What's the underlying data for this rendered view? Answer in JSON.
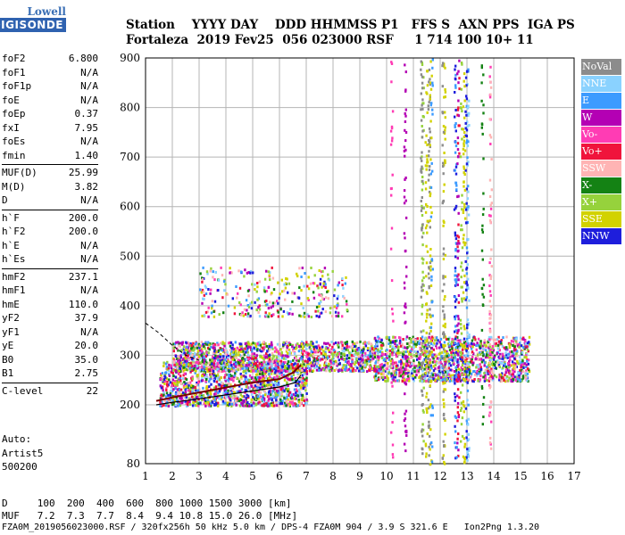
{
  "logo": {
    "line1": "Lowell",
    "line2": "DIGISONDE"
  },
  "header": {
    "line1": "Station    YYYY DAY    DDD HHMMSS P1   FFS S  AXN PPS  IGA PS",
    "line2": "Fortaleza  2019 Fev25  056 023000 RSF     1 714 100 10+ 11"
  },
  "params": [
    {
      "k": "foF2",
      "v": "6.800"
    },
    {
      "k": "foF1",
      "v": "N/A"
    },
    {
      "k": "foF1p",
      "v": "N/A"
    },
    {
      "k": "foE",
      "v": "N/A"
    },
    {
      "k": "foEp",
      "v": "0.37"
    },
    {
      "k": "fxI",
      "v": "7.95"
    },
    {
      "k": "foEs",
      "v": "N/A"
    },
    {
      "k": "fmin",
      "v": "1.40"
    },
    {
      "k": "MUF(D)",
      "v": "25.99",
      "sep": true
    },
    {
      "k": "M(D)",
      "v": "3.82"
    },
    {
      "k": "D",
      "v": "N/A"
    },
    {
      "k": "h`F",
      "v": "200.0",
      "sep": true
    },
    {
      "k": "h`F2",
      "v": "200.0"
    },
    {
      "k": "h`E",
      "v": "N/A"
    },
    {
      "k": "h`Es",
      "v": "N/A"
    },
    {
      "k": "hmF2",
      "v": "237.1",
      "sep": true
    },
    {
      "k": "hmF1",
      "v": "N/A"
    },
    {
      "k": "hmE",
      "v": "110.0"
    },
    {
      "k": "yF2",
      "v": "37.9"
    },
    {
      "k": "yF1",
      "v": "N/A"
    },
    {
      "k": "yE",
      "v": "20.0"
    },
    {
      "k": "B0",
      "v": "35.0"
    },
    {
      "k": "B1",
      "v": "2.75"
    },
    {
      "k": "C-level",
      "v": "22",
      "sep": true
    }
  ],
  "auto": {
    "l1": "Auto:",
    "l2": "Artist5",
    "l3": "500200"
  },
  "legend": [
    {
      "label": "NoVal",
      "color": "#8c8c8c"
    },
    {
      "label": "NNE",
      "color": "#8ad2ff"
    },
    {
      "label": "E",
      "color": "#3c9bff"
    },
    {
      "label": "W",
      "color": "#b400b4"
    },
    {
      "label": "Vo-",
      "color": "#ff3cb4"
    },
    {
      "label": "Vo+",
      "color": "#f0143c"
    },
    {
      "label": "SSW",
      "color": "#ffb4b4"
    },
    {
      "label": "X-",
      "color": "#148214"
    },
    {
      "label": "X+",
      "color": "#96d23c"
    },
    {
      "label": "SSE",
      "color": "#d2d200"
    },
    {
      "label": "NNW",
      "color": "#1e1edc"
    }
  ],
  "footer": {
    "d_line": "D     100  200  400  600  800 1000 1500 3000 [km]",
    "muf_line": "MUF   7.2  7.3  7.7  8.4  9.4 10.8 15.0 26.0 [MHz]",
    "file_line": "FZA0M_2019056023000.RSF / 320fx256h 50 kHz 5.0 km / DPS-4 FZA0M 904 / 3.9 S 321.6 E   Ion2Png 1.3.20"
  },
  "chart_data": {
    "type": "scatter",
    "x_range": [
      1,
      17
    ],
    "y_ticks": [
      80,
      200,
      300,
      400,
      500,
      600,
      700,
      800,
      900
    ],
    "x_ticks": [
      1,
      2,
      3,
      4,
      5,
      6,
      7,
      8,
      9,
      10,
      11,
      12,
      13,
      14,
      15,
      16,
      17
    ],
    "profile_solid": [
      [
        1.4,
        200
      ],
      [
        2,
        205
      ],
      [
        3,
        212
      ],
      [
        4,
        220
      ],
      [
        5,
        228
      ],
      [
        6,
        236
      ],
      [
        6.6,
        245
      ],
      [
        6.8,
        260
      ]
    ],
    "profile_dashed": [
      [
        1,
        365
      ],
      [
        1.5,
        345
      ],
      [
        2,
        320
      ],
      [
        2.5,
        300
      ],
      [
        3,
        290
      ]
    ],
    "fit_trace": [
      [
        1.4,
        208
      ],
      [
        2,
        215
      ],
      [
        3,
        225
      ],
      [
        4,
        235
      ],
      [
        5,
        245
      ],
      [
        6,
        252
      ],
      [
        6.5,
        265
      ],
      [
        6.8,
        280
      ]
    ],
    "echo_clusters": [
      {
        "x": [
          1.5,
          7
        ],
        "y": [
          200,
          290
        ],
        "density": "high"
      },
      {
        "x": [
          2,
          9.5
        ],
        "y": [
          270,
          330
        ],
        "density": "high"
      },
      {
        "x": [
          9.5,
          15.3
        ],
        "y": [
          250,
          340
        ],
        "density": "high"
      },
      {
        "x": [
          3,
          8.5
        ],
        "y": [
          380,
          480
        ],
        "density": "medium"
      },
      {
        "x": [
          10,
          14
        ],
        "y": [
          80,
          900
        ],
        "density": "streaks"
      }
    ]
  }
}
